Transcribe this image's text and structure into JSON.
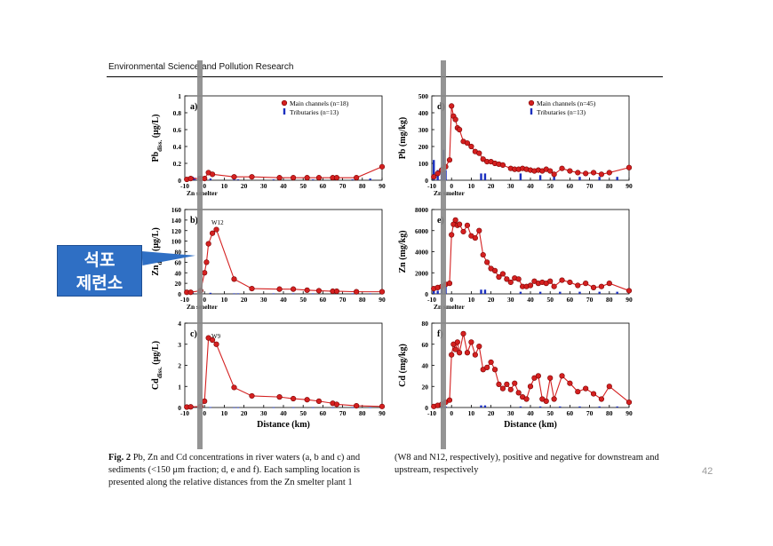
{
  "header": {
    "journal": "Environmental Science and Pollution Research"
  },
  "callout": {
    "line1": "석포",
    "line2": "제련소"
  },
  "page_number": "42",
  "caption": {
    "fig": "Fig. 2",
    "left_text": "Pb, Zn and Cd concentrations in river waters (a, b and c) and sediments (<150 μm fraction; d, e and f). Each sampling location is presented along the relative distances from the Zn smelter plant 1",
    "right_text": "(W8 and N12, respectively), positive and negative for downstream and upstream, respectively"
  },
  "colors": {
    "main": "#d42020",
    "trib": "#1a2fbf",
    "bar": "#888888"
  },
  "chart_data": [
    {
      "id": "a",
      "type": "line",
      "panel_label": "a)",
      "ylabel": "Pbdiss. (μg/L)",
      "ylabel_main": "Pb",
      "ylabel_sub": "diss.",
      "ylabel_unit": " (μg/L)",
      "xlim": [
        -10,
        90
      ],
      "ylim": [
        0,
        1
      ],
      "yticks": [
        "0",
        "0.2",
        "0.4",
        "0.6",
        "0.8",
        "1"
      ],
      "xticks": [
        "-10",
        "0",
        "10",
        "20",
        "30",
        "40",
        "50",
        "60",
        "70",
        "80",
        "90"
      ],
      "xlabel": "Zn smelter",
      "legend": [
        "Main channels (n=18)",
        "Tributaries (n=13)"
      ],
      "series": [
        {
          "name": "Main channels (n=18)",
          "x": [
            -9,
            -7,
            -2,
            0,
            2,
            4,
            15,
            24,
            38,
            45,
            52,
            58,
            65,
            67,
            77,
            90
          ],
          "y": [
            0.01,
            0.02,
            0.02,
            0.02,
            0.09,
            0.07,
            0.04,
            0.04,
            0.03,
            0.03,
            0.03,
            0.03,
            0.03,
            0.03,
            0.03,
            0.16
          ]
        },
        {
          "name": "Tributaries (n=13)",
          "x": [
            -9,
            -6,
            -5,
            -3,
            3,
            15,
            17,
            35,
            45,
            55,
            65,
            75,
            84
          ],
          "y": [
            0.01,
            0.04,
            0.03,
            0.05,
            0.02,
            0.01,
            0.01,
            0.01,
            0.01,
            0.01,
            0.01,
            0.01,
            0.02
          ]
        }
      ]
    },
    {
      "id": "b",
      "type": "line",
      "panel_label": "b)",
      "ylabel": "Zndiss. (μg/L)",
      "ylabel_main": "Zn",
      "ylabel_sub": "diss.",
      "ylabel_unit": " (μg/L)",
      "xlim": [
        -10,
        90
      ],
      "ylim": [
        0,
        160
      ],
      "yticks": [
        "0",
        "20",
        "40",
        "60",
        "80",
        "100",
        "120",
        "140",
        "160"
      ],
      "xticks": [
        "-10",
        "0",
        "10",
        "20",
        "30",
        "40",
        "50",
        "60",
        "70",
        "80",
        "90"
      ],
      "xlabel": "Zn smelter",
      "annotation": "W12",
      "series": [
        {
          "name": "Main channels (n=18)",
          "x": [
            -9,
            -7,
            -2,
            0,
            1,
            2,
            4,
            6,
            15,
            24,
            38,
            45,
            52,
            58,
            65,
            67,
            77,
            90
          ],
          "y": [
            3,
            3,
            6,
            40,
            60,
            95,
            115,
            122,
            28,
            10,
            9,
            9,
            7,
            6,
            5,
            5,
            4,
            4
          ]
        },
        {
          "name": "Tributaries (n=13)",
          "x": [
            -9,
            -6,
            -3,
            3,
            15,
            17,
            35,
            45,
            55,
            65,
            75,
            84
          ],
          "y": [
            1,
            2,
            7,
            2,
            1,
            1,
            1,
            1,
            1,
            2,
            1,
            1
          ]
        }
      ]
    },
    {
      "id": "c",
      "type": "line",
      "panel_label": "c)",
      "ylabel": "Cddiss. (μg/L)",
      "ylabel_main": "Cd",
      "ylabel_sub": "diss.",
      "ylabel_unit": " (μg/L)",
      "xlim": [
        -10,
        90
      ],
      "ylim": [
        0,
        4
      ],
      "yticks": [
        "0",
        "1",
        "2",
        "3",
        "4"
      ],
      "xticks": [
        "-10",
        "0",
        "10",
        "20",
        "30",
        "40",
        "50",
        "60",
        "70",
        "80",
        "90"
      ],
      "xlabel": "Distance (km)",
      "annotation": "W9",
      "series": [
        {
          "name": "Main channels (n=18)",
          "x": [
            -9,
            -7,
            -2,
            0,
            2,
            4,
            6,
            15,
            24,
            38,
            45,
            52,
            58,
            65,
            67,
            77,
            90
          ],
          "y": [
            0.02,
            0.03,
            0.05,
            0.3,
            3.3,
            3.2,
            3.0,
            0.95,
            0.55,
            0.5,
            0.42,
            0.37,
            0.3,
            0.2,
            0.15,
            0.08,
            0.05
          ]
        },
        {
          "name": "Tributaries (n=13)",
          "x": [
            -9,
            -6,
            -3,
            3,
            15,
            17,
            35,
            45,
            55,
            65,
            75,
            84
          ],
          "y": [
            0.01,
            0.02,
            0.02,
            0.02,
            0.01,
            0.01,
            0.01,
            0.01,
            0.01,
            0.01,
            0.01,
            0.01
          ]
        }
      ]
    },
    {
      "id": "d",
      "type": "line",
      "panel_label": "d)",
      "ylabel": "Pb (mg/kg)",
      "ylabel_main": "Pb",
      "ylabel_sub": "",
      "ylabel_unit": " (mg/kg)",
      "xlim": [
        -10,
        90
      ],
      "ylim": [
        0,
        500
      ],
      "yticks": [
        "0",
        "100",
        "200",
        "300",
        "400",
        "500"
      ],
      "xticks": [
        "-10",
        "0",
        "10",
        "20",
        "30",
        "40",
        "50",
        "60",
        "70",
        "80",
        "90"
      ],
      "xlabel": "Zn smelter",
      "legend": [
        "Main channels (n=45)",
        "Tributaries (n=13)"
      ],
      "series": [
        {
          "name": "Main channels (n=45)",
          "x": [
            -9,
            -7,
            -5,
            -3,
            -1,
            0,
            1,
            2,
            3,
            4,
            6,
            8,
            10,
            12,
            14,
            16,
            18,
            20,
            22,
            24,
            26,
            30,
            32,
            34,
            36,
            38,
            40,
            42,
            44,
            46,
            48,
            50,
            52,
            56,
            60,
            64,
            68,
            72,
            76,
            80,
            90
          ],
          "y": [
            20,
            40,
            60,
            80,
            120,
            440,
            380,
            360,
            310,
            300,
            230,
            220,
            200,
            170,
            160,
            125,
            110,
            110,
            100,
            95,
            90,
            70,
            65,
            65,
            70,
            65,
            60,
            55,
            60,
            55,
            65,
            55,
            35,
            70,
            55,
            45,
            40,
            45,
            35,
            45,
            75
          ]
        },
        {
          "name": "Tributaries (n=13)",
          "x": [
            -9,
            -7,
            -5,
            -4,
            -3,
            15,
            17,
            35,
            45,
            52,
            65,
            75,
            84
          ],
          "y": [
            120,
            60,
            80,
            180,
            60,
            40,
            40,
            40,
            30,
            50,
            20,
            20,
            20
          ]
        }
      ]
    },
    {
      "id": "e",
      "type": "line",
      "panel_label": "e)",
      "ylabel": "Zn (mg/kg)",
      "ylabel_main": "Zn",
      "ylabel_sub": "",
      "ylabel_unit": " (mg/kg)",
      "xlim": [
        -10,
        90
      ],
      "ylim": [
        0,
        8000
      ],
      "yticks": [
        "0",
        "2000",
        "4000",
        "6000",
        "8000"
      ],
      "xticks": [
        "-10",
        "0",
        "10",
        "20",
        "30",
        "40",
        "50",
        "60",
        "70",
        "80",
        "90"
      ],
      "xlabel": "Zn smelter",
      "series": [
        {
          "name": "Main channels (n=45)",
          "x": [
            -9,
            -7,
            -5,
            -3,
            -1,
            0,
            1,
            2,
            3,
            4,
            6,
            8,
            10,
            12,
            14,
            16,
            18,
            20,
            22,
            24,
            26,
            28,
            30,
            32,
            34,
            36,
            38,
            40,
            42,
            44,
            46,
            48,
            50,
            52,
            56,
            60,
            64,
            68,
            72,
            76,
            80,
            90
          ],
          "y": [
            500,
            600,
            700,
            900,
            1000,
            5600,
            6600,
            7000,
            6500,
            6600,
            5900,
            6500,
            5500,
            5300,
            6000,
            3700,
            3000,
            2400,
            2200,
            1600,
            1900,
            1400,
            1100,
            1500,
            1400,
            700,
            700,
            800,
            1200,
            1000,
            1100,
            1000,
            1200,
            700,
            1300,
            1100,
            800,
            1000,
            600,
            700,
            1000,
            300
          ]
        },
        {
          "name": "Tributaries (n=13)",
          "x": [
            -9,
            -7,
            -5,
            -3,
            15,
            17,
            35,
            45,
            55,
            65,
            75,
            84
          ],
          "y": [
            400,
            300,
            600,
            800,
            400,
            400,
            200,
            200,
            200,
            200,
            200,
            200
          ]
        }
      ]
    },
    {
      "id": "f",
      "type": "line",
      "panel_label": "f)",
      "ylabel": "Cd (mg/kg)",
      "ylabel_main": "Cd",
      "ylabel_sub": "",
      "ylabel_unit": " (mg/kg)",
      "xlim": [
        -10,
        90
      ],
      "ylim": [
        0,
        80
      ],
      "yticks": [
        "0",
        "20",
        "40",
        "60",
        "80"
      ],
      "xticks": [
        "-10",
        "0",
        "10",
        "20",
        "30",
        "40",
        "50",
        "60",
        "70",
        "80",
        "90"
      ],
      "xlabel": "Distance (km)",
      "series": [
        {
          "name": "Main channels (n=45)",
          "x": [
            -9,
            -7,
            -5,
            -3,
            -1,
            0,
            1,
            2,
            3,
            4,
            6,
            8,
            10,
            12,
            14,
            16,
            18,
            20,
            22,
            24,
            26,
            28,
            30,
            32,
            34,
            36,
            38,
            40,
            42,
            44,
            46,
            48,
            50,
            52,
            56,
            60,
            64,
            68,
            72,
            76,
            80,
            90
          ],
          "y": [
            1,
            2,
            3,
            5,
            7,
            50,
            60,
            55,
            62,
            52,
            70,
            52,
            62,
            50,
            58,
            36,
            38,
            43,
            36,
            22,
            18,
            22,
            17,
            23,
            14,
            10,
            8,
            20,
            28,
            30,
            8,
            6,
            28,
            8,
            30,
            23,
            15,
            18,
            13,
            8,
            20,
            5
          ]
        },
        {
          "name": "Tributaries (n=13)",
          "x": [
            -9,
            -7,
            -5,
            -3,
            15,
            17,
            35,
            45,
            55,
            65,
            75,
            84
          ],
          "y": [
            1,
            1,
            1,
            1,
            2,
            2,
            1,
            1,
            1,
            1,
            1,
            1
          ]
        }
      ]
    }
  ]
}
